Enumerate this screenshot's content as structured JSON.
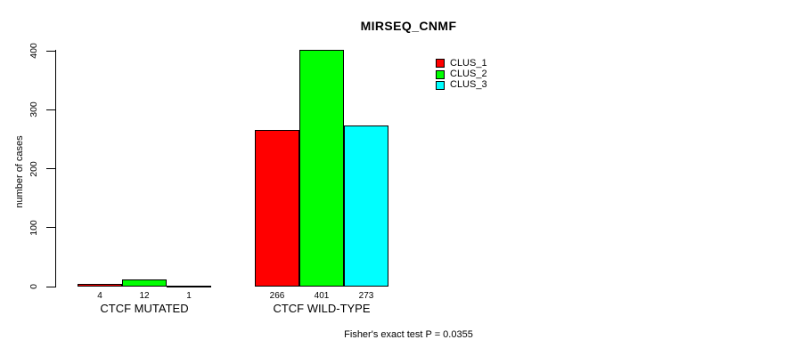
{
  "chart_data": {
    "type": "bar",
    "title": "MIRSEQ_CNMF",
    "ylabel": "number of cases",
    "xlabel": "",
    "categories": [
      "CTCF MUTATED",
      "CTCF WILD-TYPE"
    ],
    "series": [
      {
        "name": "CLUS_1",
        "color": "#FF0000",
        "values": [
          4,
          266
        ]
      },
      {
        "name": "CLUS_2",
        "color": "#00FF00",
        "values": [
          12,
          401
        ]
      },
      {
        "name": "CLUS_3",
        "color": "#00FFFF",
        "values": [
          1,
          273
        ]
      }
    ],
    "ylim": [
      0,
      400
    ],
    "yticks": [
      0,
      100,
      200,
      300,
      400
    ],
    "grid": false,
    "legend_position": "top-right",
    "annotation": "Fisher's exact test P = 0.0355",
    "axis_color": "#000000",
    "background_color": "#FFFFFF"
  }
}
